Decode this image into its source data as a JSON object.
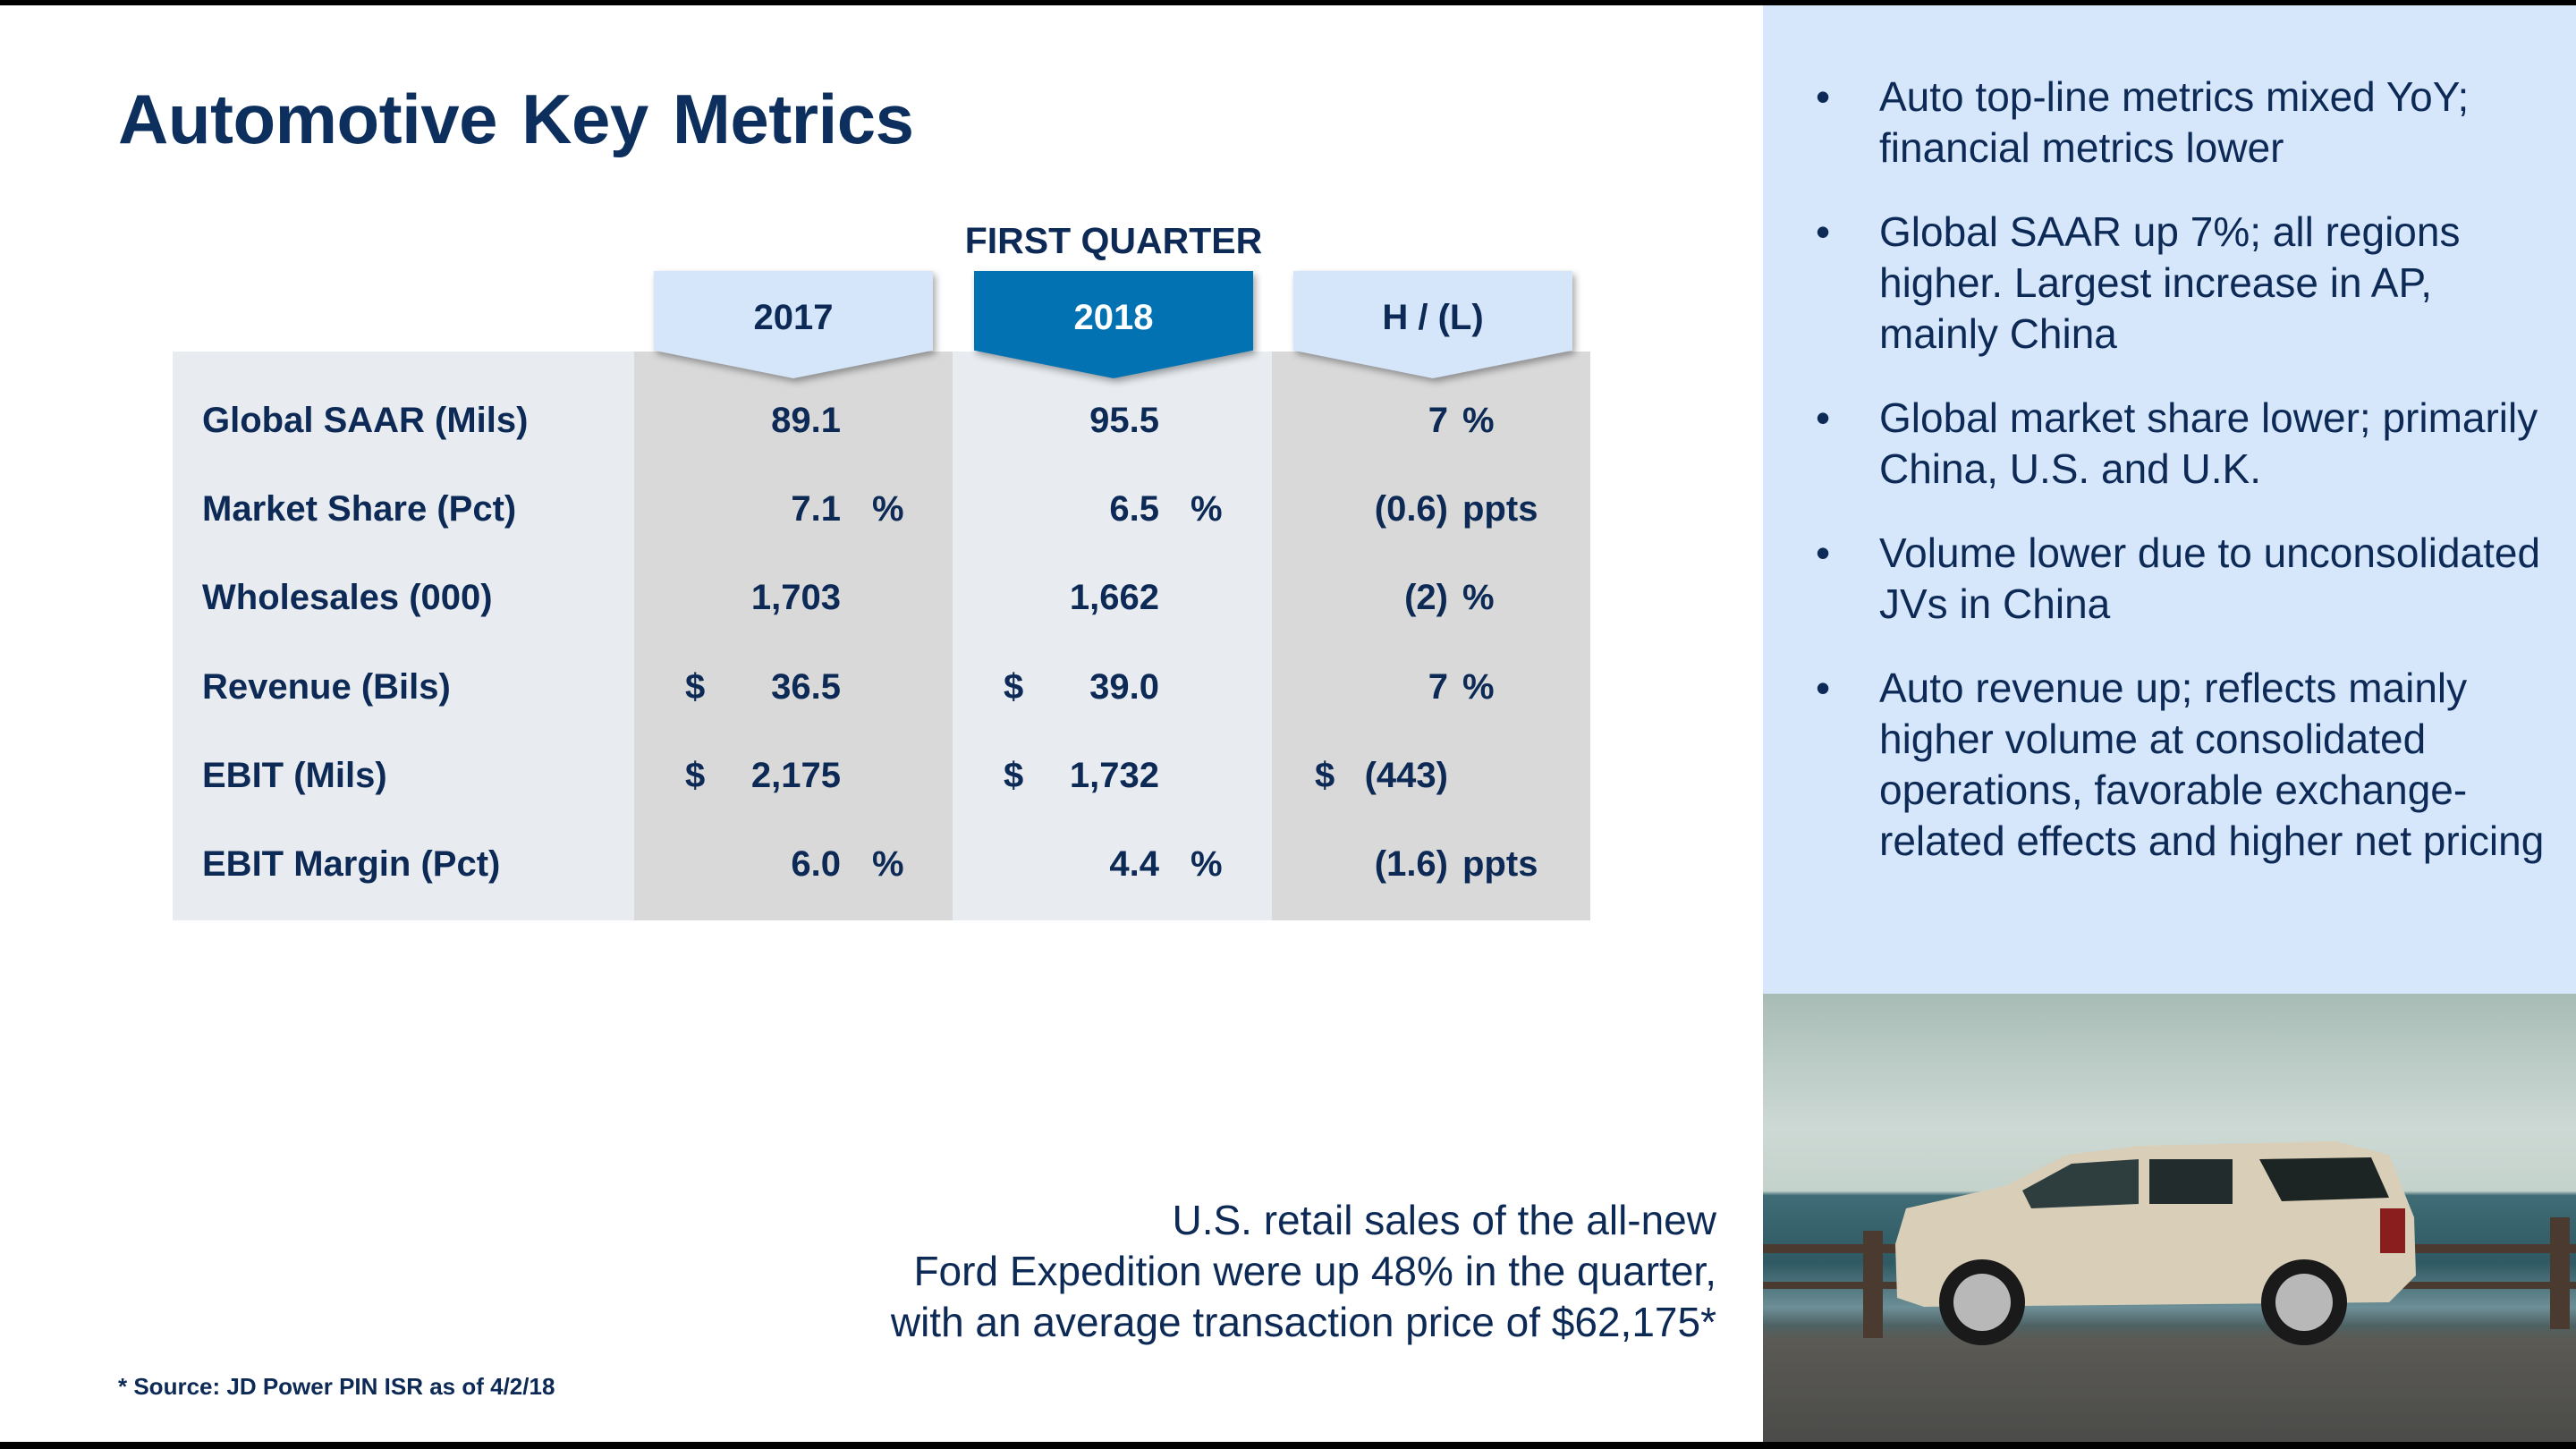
{
  "title": "Automotive Key Metrics",
  "table": {
    "group_header": "FIRST QUARTER",
    "columns": [
      "2017",
      "2018",
      "H / (L)"
    ],
    "colors": {
      "highlight_tab": "#0272b2",
      "light_tab": "#d6e6fa",
      "gray_col": "#d9d9d9",
      "light_col": "#e8ecf0"
    },
    "rows": [
      {
        "label": "Global SAAR (Mils)",
        "c1": {
          "pre": "",
          "val": "89.1",
          "suf": ""
        },
        "c2": {
          "pre": "",
          "val": "95.5",
          "suf": ""
        },
        "c3": {
          "pre": "",
          "val": "7",
          "suf": "%"
        }
      },
      {
        "label": "Market Share (Pct)",
        "c1": {
          "pre": "",
          "val": "7.1",
          "suf": "%"
        },
        "c2": {
          "pre": "",
          "val": "6.5",
          "suf": "%"
        },
        "c3": {
          "pre": "",
          "val": "(0.6)",
          "suf": "ppts"
        }
      },
      {
        "label": "Wholesales (000)",
        "c1": {
          "pre": "",
          "val": "1,703",
          "suf": ""
        },
        "c2": {
          "pre": "",
          "val": "1,662",
          "suf": ""
        },
        "c3": {
          "pre": "",
          "val": "(2)",
          "suf": "%"
        }
      },
      {
        "label": "Revenue (Bils)",
        "c1": {
          "pre": "$",
          "val": "36.5",
          "suf": ""
        },
        "c2": {
          "pre": "$",
          "val": "39.0",
          "suf": ""
        },
        "c3": {
          "pre": "",
          "val": "7",
          "suf": "%"
        }
      },
      {
        "label": "EBIT (Mils)",
        "c1": {
          "pre": "$",
          "val": "2,175",
          "suf": ""
        },
        "c2": {
          "pre": "$",
          "val": "1,732",
          "suf": ""
        },
        "c3": {
          "pre": "$",
          "val": "(443)",
          "suf": ""
        }
      },
      {
        "label": "EBIT Margin (Pct)",
        "c1": {
          "pre": "",
          "val": "6.0",
          "suf": "%"
        },
        "c2": {
          "pre": "",
          "val": "4.4",
          "suf": "%"
        },
        "c3": {
          "pre": "",
          "val": "(1.6)",
          "suf": "ppts"
        }
      }
    ]
  },
  "bullets": [
    "Auto top-line metrics mixed YoY; financial metrics lower",
    "Global SAAR up 7%; all regions higher.  Largest increase in AP, mainly China",
    "Global market share lower; primarily China, U.S. and U.K.",
    "Volume lower due to unconsolidated JVs in China",
    "Auto revenue up; reflects mainly higher volume at consolidated operations, favorable exchange-related effects and higher net pricing"
  ],
  "bullet_char": "•",
  "caption": [
    "U.S. retail sales of the all-new",
    "Ford Expedition were up 48% in the quarter,",
    "with an average transaction price of $62,175*"
  ],
  "source": "* Source:  JD Power PIN ISR as of 4/2/18",
  "photo": {
    "icon": "ford-expedition-photo"
  }
}
